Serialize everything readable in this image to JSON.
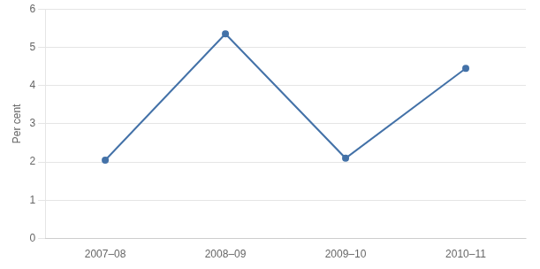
{
  "chart_data": {
    "type": "line",
    "y_label": "Per cent",
    "categories": [
      "2007–08",
      "2008–09",
      "2009–10",
      "2010–11"
    ],
    "values": [
      2.05,
      5.35,
      2.1,
      4.45
    ],
    "color": "#4472a8",
    "ylim": [
      0,
      6
    ],
    "yticks": [
      0,
      1,
      2,
      3,
      4,
      5,
      6
    ],
    "grid": true
  }
}
